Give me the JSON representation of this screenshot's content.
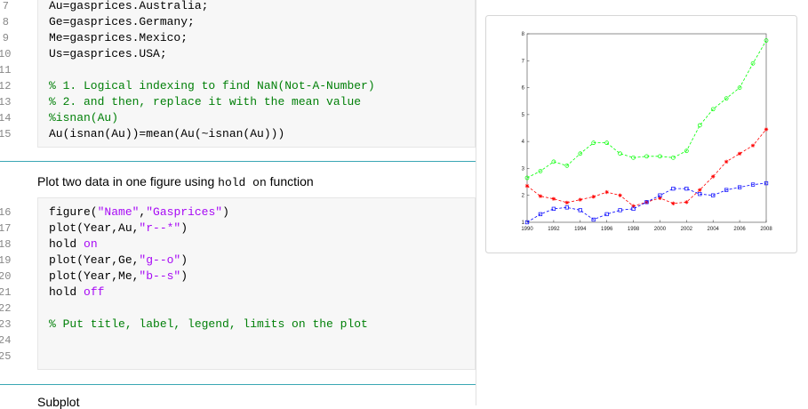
{
  "editor": {
    "cells": [
      {
        "lines": [
          {
            "number": "7",
            "segments": [
              {
                "text": "Au=gasprices.Australia;"
              }
            ]
          },
          {
            "number": "8",
            "segments": [
              {
                "text": "Ge=gasprices.Germany;"
              }
            ]
          },
          {
            "number": "9",
            "segments": [
              {
                "text": "Me=gasprices.Mexico;"
              }
            ]
          },
          {
            "number": "10",
            "segments": [
              {
                "text": "Us=gasprices.USA;"
              }
            ]
          },
          {
            "number": "11",
            "segments": []
          },
          {
            "number": "12",
            "segments": [
              {
                "text": "% 1. Logical indexing to find NaN(Not-A-Number)",
                "color": "#028009"
              }
            ]
          },
          {
            "number": "13",
            "segments": [
              {
                "text": "% 2. and then, replace it with the mean value",
                "color": "#028009"
              }
            ]
          },
          {
            "number": "14",
            "segments": [
              {
                "text": "%isnan(Au)",
                "color": "#028009"
              }
            ]
          },
          {
            "number": "15",
            "segments": [
              {
                "text": "Au(isnan(Au))=mean(Au(~isnan(Au)))"
              }
            ]
          }
        ]
      },
      {
        "lines": [
          {
            "number": "16",
            "segments": [
              {
                "text": "figure("
              },
              {
                "text": "\"Name\"",
                "color": "#a709f5"
              },
              {
                "text": ","
              },
              {
                "text": "\"Gasprices\"",
                "color": "#a709f5"
              },
              {
                "text": ")"
              }
            ]
          },
          {
            "number": "17",
            "segments": [
              {
                "text": "plot(Year,Au,"
              },
              {
                "text": "\"r--*\"",
                "color": "#a709f5"
              },
              {
                "text": ")"
              }
            ]
          },
          {
            "number": "18",
            "segments": [
              {
                "text": "hold "
              },
              {
                "text": "on",
                "color": "#a709f5"
              }
            ]
          },
          {
            "number": "19",
            "segments": [
              {
                "text": "plot(Year,Ge,"
              },
              {
                "text": "\"g--o\"",
                "color": "#a709f5"
              },
              {
                "text": ")"
              }
            ]
          },
          {
            "number": "20",
            "segments": [
              {
                "text": "plot(Year,Me,"
              },
              {
                "text": "\"b--s\"",
                "color": "#a709f5"
              },
              {
                "text": ")"
              }
            ]
          },
          {
            "number": "21",
            "segments": [
              {
                "text": "hold "
              },
              {
                "text": "off",
                "color": "#a709f5"
              }
            ]
          },
          {
            "number": "22",
            "segments": []
          },
          {
            "number": "23",
            "segments": [
              {
                "text": "% Put title, label, legend, limits on the plot",
                "color": "#028009"
              }
            ]
          },
          {
            "number": "24",
            "segments": []
          },
          {
            "number": "25",
            "segments": []
          }
        ]
      }
    ],
    "text_blocks": [
      {
        "segments": [
          {
            "text": "Plot two data in one figure using "
          },
          {
            "text": "hold on",
            "code": true
          },
          {
            "text": " function"
          }
        ]
      },
      {
        "segments": [
          {
            "text": "Subplot"
          }
        ]
      }
    ]
  },
  "chart_data": {
    "type": "line",
    "x": [
      1990,
      1991,
      1992,
      1993,
      1994,
      1995,
      1996,
      1997,
      1998,
      1999,
      2000,
      2001,
      2002,
      2003,
      2004,
      2005,
      2006,
      2007,
      2008
    ],
    "series": [
      {
        "marker": "star",
        "color": "#ff0000",
        "values": [
          2.35,
          1.97,
          1.87,
          1.73,
          1.84,
          1.95,
          2.12,
          2.0,
          1.6,
          1.75,
          1.9,
          1.7,
          1.75,
          2.2,
          2.7,
          3.25,
          3.55,
          3.85,
          4.45
        ]
      },
      {
        "marker": "circle",
        "color": "#00ff00",
        "values": [
          2.65,
          2.9,
          3.25,
          3.1,
          3.55,
          3.95,
          3.95,
          3.55,
          3.4,
          3.45,
          3.45,
          3.4,
          3.65,
          4.6,
          5.2,
          5.6,
          6.0,
          6.9,
          7.75
        ]
      },
      {
        "marker": "square",
        "color": "#0000ff",
        "values": [
          1.0,
          1.3,
          1.5,
          1.55,
          1.45,
          1.1,
          1.3,
          1.45,
          1.5,
          1.75,
          2.0,
          2.25,
          2.25,
          2.05,
          2.0,
          2.2,
          2.3,
          2.4,
          2.45
        ]
      }
    ],
    "xlim": [
      1990,
      2008
    ],
    "xticks": [
      1990,
      1992,
      1994,
      1996,
      1998,
      2000,
      2002,
      2004,
      2006,
      2008
    ],
    "ylim": [
      1,
      8
    ],
    "yticks": [
      1,
      2,
      3,
      4,
      5,
      6,
      7,
      8
    ]
  }
}
